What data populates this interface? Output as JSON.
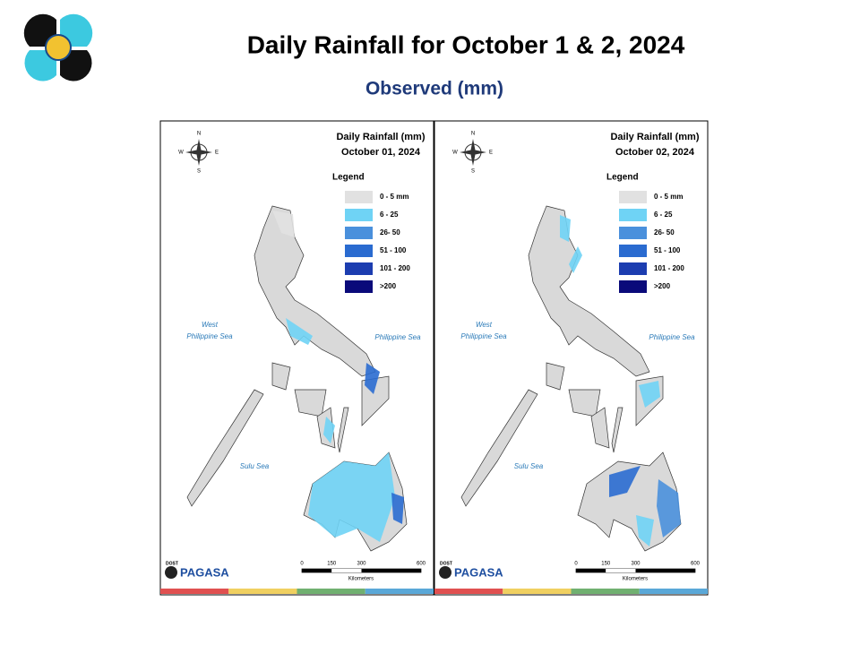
{
  "header": {
    "title": "Daily Rainfall for October 1 & 2, 2024",
    "subtitle": "Observed (mm)"
  },
  "maps": [
    {
      "title": "Daily Rainfall (mm)",
      "date": "October 01, 2024",
      "legend_title": "Legend",
      "legend": [
        {
          "label": "0 - 5 mm",
          "color": "#e1e1e1"
        },
        {
          "label": "6 - 25",
          "color": "#6fd3f5"
        },
        {
          "label": "26- 50",
          "color": "#4a90dc"
        },
        {
          "label": "51 - 100",
          "color": "#2a6bd0"
        },
        {
          "label": "101 - 200",
          "color": "#1c3db0"
        },
        {
          "label": ">200",
          "color": "#0a0a7a"
        }
      ],
      "labels": {
        "west_1": "West",
        "west_2": "Philippine Sea",
        "east": "Philippine Sea",
        "south": "Sulu Sea"
      },
      "compass": [
        "N",
        "E",
        "S",
        "W"
      ],
      "scale": [
        0,
        150,
        300,
        600
      ],
      "scale_unit": "Kilometers",
      "logo": [
        "DOST",
        "PAGASA"
      ]
    },
    {
      "title": "Daily Rainfall (mm)",
      "date": "October 02, 2024",
      "legend_title": "Legend",
      "legend": [
        {
          "label": "0 - 5 mm",
          "color": "#e1e1e1"
        },
        {
          "label": "6 - 25",
          "color": "#6fd3f5"
        },
        {
          "label": "26- 50",
          "color": "#4a90dc"
        },
        {
          "label": "51 - 100",
          "color": "#2a6bd0"
        },
        {
          "label": "101 - 200",
          "color": "#1c3db0"
        },
        {
          "label": ">200",
          "color": "#0a0a7a"
        }
      ],
      "labels": {
        "west_1": "West",
        "west_2": "Philippine Sea",
        "east": "Philippine Sea",
        "south": "Sulu Sea"
      },
      "compass": [
        "N",
        "E",
        "S",
        "W"
      ],
      "scale": [
        0,
        150,
        300,
        600
      ],
      "scale_unit": "Kilometers",
      "logo": [
        "DOST",
        "PAGASA"
      ]
    }
  ]
}
